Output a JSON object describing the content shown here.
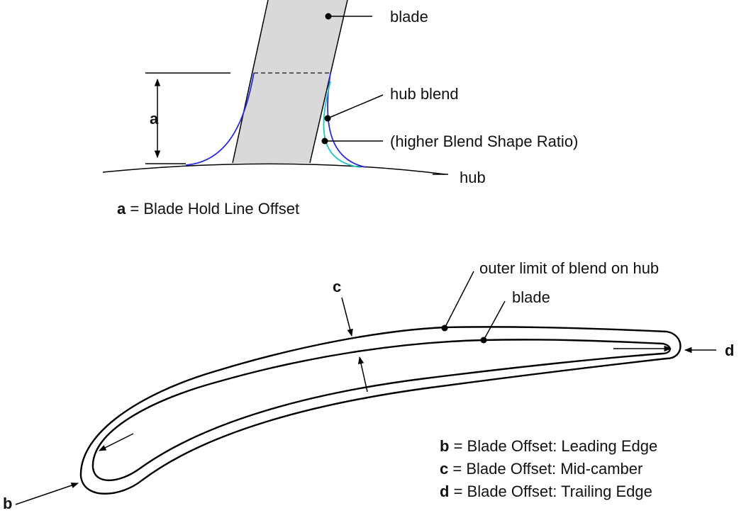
{
  "colors": {
    "line": "#000000",
    "blade_fill": "#d9d9d9",
    "blend": "#2b2bdc",
    "blend_alt": "#22c3c3",
    "text": "#111111"
  },
  "top_diagram": {
    "label_blade": "blade",
    "label_hub_blend": "hub blend",
    "label_higher_ratio": "(higher Blend Shape Ratio)",
    "label_hub": "hub",
    "dim_letter": "a",
    "legend": {
      "key": "a",
      "text": " = Blade Hold Line Offset"
    }
  },
  "bottom_diagram": {
    "label_outer_limit": "outer limit of blend on hub",
    "label_blade": "blade",
    "marker_b": "b",
    "marker_c": "c",
    "marker_d": "d",
    "legend": [
      {
        "key": "b",
        "text": " = Blade Offset: Leading Edge"
      },
      {
        "key": "c",
        "text": " = Blade Offset: Mid-camber"
      },
      {
        "key": "d",
        "text": " = Blade Offset: Trailing Edge"
      }
    ]
  }
}
